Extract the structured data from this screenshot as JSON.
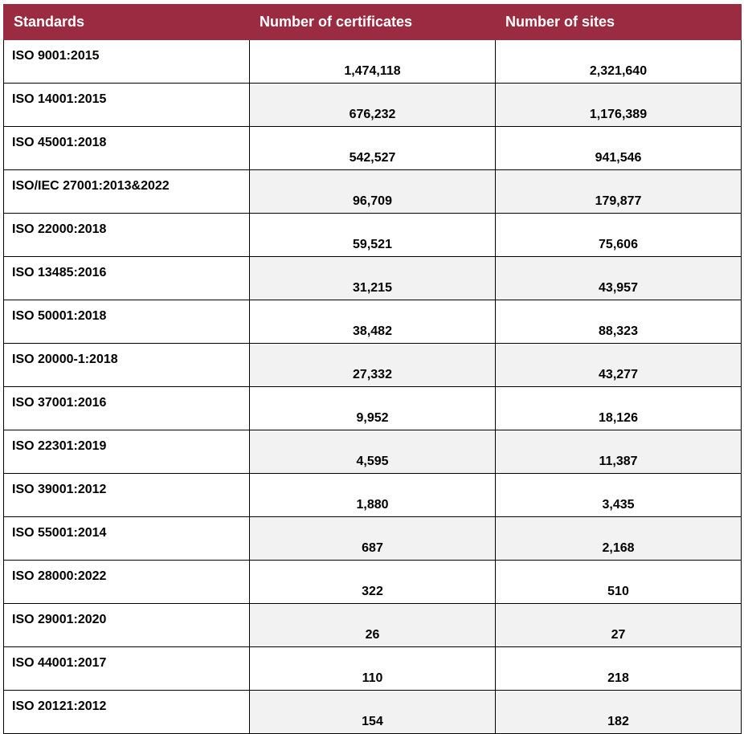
{
  "table": {
    "header": {
      "standards": "Standards",
      "certificates": "Number of certificates",
      "sites": "Number of sites"
    },
    "rows": [
      {
        "standard": "ISO 9001:2015",
        "certificates": "1,474,118",
        "sites": "2,321,640"
      },
      {
        "standard": "ISO 14001:2015",
        "certificates": "676,232",
        "sites": "1,176,389"
      },
      {
        "standard": "ISO 45001:2018",
        "certificates": "542,527",
        "sites": "941,546"
      },
      {
        "standard": "ISO/IEC 27001:2013&2022",
        "certificates": "96,709",
        "sites": "179,877"
      },
      {
        "standard": "ISO 22000:2018",
        "certificates": "59,521",
        "sites": "75,606"
      },
      {
        "standard": "ISO 13485:2016",
        "certificates": "31,215",
        "sites": "43,957"
      },
      {
        "standard": "ISO 50001:2018",
        "certificates": "38,482",
        "sites": "88,323"
      },
      {
        "standard": "ISO 20000-1:2018",
        "certificates": "27,332",
        "sites": "43,277"
      },
      {
        "standard": "ISO 37001:2016",
        "certificates": "9,952",
        "sites": "18,126"
      },
      {
        "standard": "ISO 22301:2019",
        "certificates": "4,595",
        "sites": "11,387"
      },
      {
        "standard": "ISO 39001:2012",
        "certificates": "1,880",
        "sites": "3,435"
      },
      {
        "standard": "ISO 55001:2014",
        "certificates": "687",
        "sites": "2,168"
      },
      {
        "standard": "ISO 28000:2022",
        "certificates": "322",
        "sites": "510"
      },
      {
        "standard": "ISO 29001:2020",
        "certificates": "26",
        "sites": "27"
      },
      {
        "standard": "ISO 44001:2017",
        "certificates": "110",
        "sites": "218"
      },
      {
        "standard": "ISO 20121:2012",
        "certificates": "154",
        "sites": "182"
      }
    ]
  }
}
